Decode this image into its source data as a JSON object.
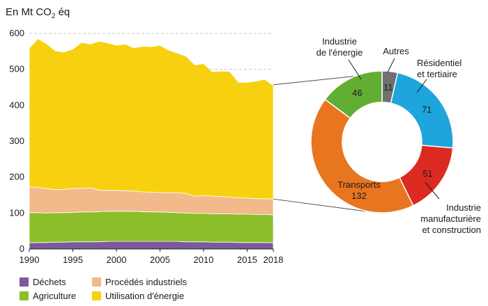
{
  "chart_data": [
    {
      "type": "area",
      "stacked": true,
      "ylabel_prefix": "En Mt CO",
      "ylabel_sub": "2",
      "ylabel_suffix": " éq",
      "ylim": [
        0,
        600
      ],
      "yticks": [
        "0",
        "100",
        "200",
        "300",
        "400",
        "500",
        "600"
      ],
      "xlim": [
        1990,
        2018
      ],
      "xticks": [
        "1990",
        "1995",
        "2000",
        "2005",
        "2010",
        "2015",
        "2018"
      ],
      "grid": "dashed at 500 and 600",
      "x": [
        1990,
        1991,
        1992,
        1993,
        1994,
        1995,
        1996,
        1997,
        1998,
        1999,
        2000,
        2001,
        2002,
        2003,
        2004,
        2005,
        2006,
        2007,
        2008,
        2009,
        2010,
        2011,
        2012,
        2013,
        2014,
        2015,
        2016,
        2017,
        2018
      ],
      "series": [
        {
          "name": "Déchets",
          "color": "#7a5a9b",
          "values": [
            17,
            18,
            18,
            19,
            19,
            20,
            20,
            20,
            20,
            21,
            21,
            21,
            21,
            21,
            21,
            21,
            21,
            21,
            20,
            20,
            20,
            19,
            19,
            19,
            18,
            18,
            18,
            18,
            17
          ]
        },
        {
          "name": "Agriculture",
          "color": "#8cbe2a",
          "values": [
            84,
            83,
            82,
            82,
            82,
            82,
            83,
            83,
            84,
            84,
            84,
            84,
            84,
            83,
            82,
            82,
            81,
            80,
            80,
            79,
            79,
            79,
            79,
            79,
            79,
            79,
            78,
            78,
            78
          ]
        },
        {
          "name": "Procédés industriels",
          "color": "#f2b98a",
          "values": [
            72,
            70,
            68,
            64,
            65,
            66,
            66,
            67,
            60,
            58,
            58,
            57,
            56,
            55,
            55,
            54,
            55,
            56,
            54,
            48,
            50,
            49,
            48,
            46,
            45,
            45,
            44,
            44,
            44
          ]
        },
        {
          "name": "Utilisation d'énergie",
          "color": "#f7d10f",
          "values": [
            386,
            414,
            403,
            386,
            382,
            388,
            406,
            400,
            414,
            410,
            404,
            408,
            399,
            405,
            405,
            410,
            396,
            388,
            382,
            365,
            367,
            346,
            349,
            350,
            322,
            322,
            327,
            332,
            316
          ]
        }
      ]
    },
    {
      "type": "pie",
      "donut": true,
      "slices": [
        {
          "label": "Autres",
          "value": 11,
          "color": "#707070"
        },
        {
          "label": "Résidentiel et tertiaire",
          "value": 71,
          "color": "#1ea5dc"
        },
        {
          "label": "Industrie manufacturière et construction",
          "value": 51,
          "color": "#dc2a20"
        },
        {
          "label": "Transports",
          "value": 132,
          "color": "#e87520"
        },
        {
          "label": "Industrie de l'énergie",
          "value": 46,
          "color": "#62ae33"
        }
      ],
      "labels": {
        "autres": [
          "Autres"
        ],
        "residentiel": [
          "Résidentiel",
          "et tertiaire"
        ],
        "industrie_manuf": [
          "Industrie",
          "manufacturière",
          "et construction"
        ],
        "transports": [
          "Transports",
          "132"
        ],
        "energie": [
          "Industrie",
          "de l'énergie"
        ]
      }
    }
  ],
  "legend": [
    {
      "label": "Déchets",
      "color": "#7a5a9b"
    },
    {
      "label": "Procédés industriels",
      "color": "#f2b98a"
    },
    {
      "label": "Agriculture",
      "color": "#8cbe2a"
    },
    {
      "label": "Utilisation d'énergie",
      "color": "#f7d10f"
    }
  ]
}
